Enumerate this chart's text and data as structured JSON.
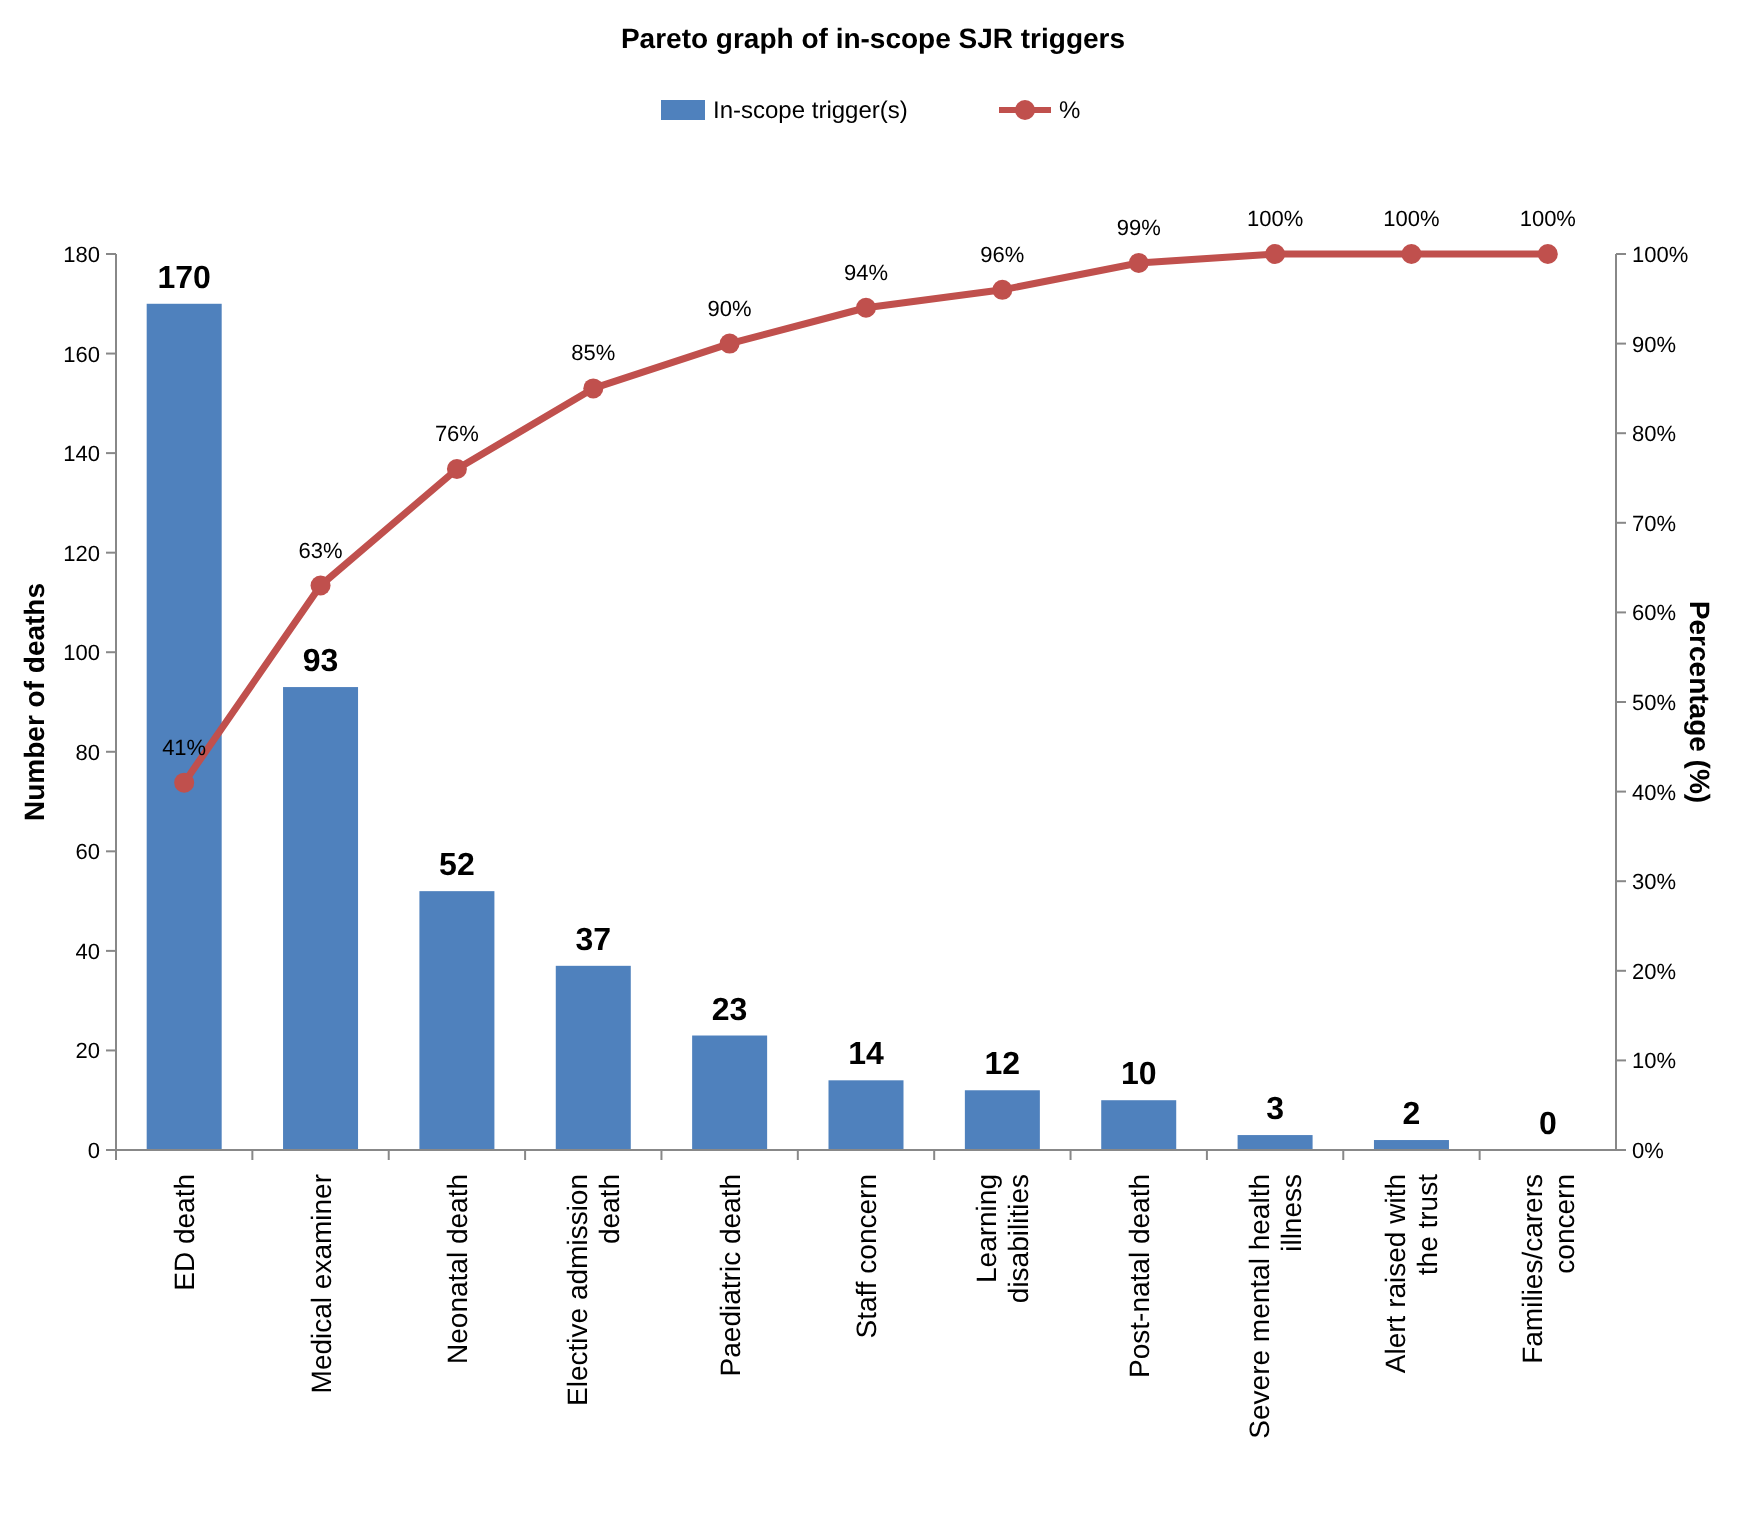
{
  "chart_data": {
    "type": "bar",
    "title": "Pareto graph of in-scope SJR triggers",
    "ylabel": "Number of deaths",
    "y2label": "Percentage (%)",
    "categories": [
      "ED death",
      "Medical examiner",
      "Neonatal death",
      "Elective admission death",
      "Paediatric death",
      "Staff concern",
      "Learning disabilities",
      "Post-natal death",
      "Severe mental health illness",
      "Alert raised with the trust",
      "Families/carers concern"
    ],
    "series": [
      {
        "name": "In-scope trigger(s)",
        "color": "#4f81bd",
        "values": [
          170,
          93,
          52,
          37,
          23,
          14,
          12,
          10,
          3,
          2,
          0
        ],
        "value_labels": [
          "170",
          "93",
          "52",
          "37",
          "23",
          "14",
          "12",
          "10",
          "3",
          "2",
          "0"
        ]
      },
      {
        "name": "%",
        "type": "line",
        "axis": "y2",
        "color": "#c0504d",
        "marker": "circle",
        "values": [
          41,
          63,
          76,
          85,
          90,
          94,
          96,
          99,
          100,
          100,
          100
        ],
        "value_labels": [
          "41%",
          "63%",
          "76%",
          "85%",
          "90%",
          "94%",
          "96%",
          "99%",
          "100%",
          "100%",
          "100%"
        ]
      }
    ],
    "ylim": [
      0,
      180
    ],
    "yticks": [
      0,
      20,
      40,
      60,
      80,
      100,
      120,
      140,
      160,
      180
    ],
    "y2lim": [
      0,
      100
    ],
    "y2ticks": [
      {
        "value": 0,
        "label": "0%"
      },
      {
        "value": 10,
        "label": "10%"
      },
      {
        "value": 20,
        "label": "20%"
      },
      {
        "value": 30,
        "label": "30%"
      },
      {
        "value": 40,
        "label": "40%"
      },
      {
        "value": 50,
        "label": "50%"
      },
      {
        "value": 60,
        "label": "60%"
      },
      {
        "value": 70,
        "label": "70%"
      },
      {
        "value": 80,
        "label": "80%"
      },
      {
        "value": 90,
        "label": "90%"
      },
      {
        "value": 100,
        "label": "100%"
      }
    ],
    "grid": false,
    "legend": "top"
  }
}
